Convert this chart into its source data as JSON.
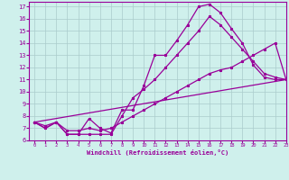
{
  "xlabel": "Windchill (Refroidissement éolien,°C)",
  "xlim": [
    -0.5,
    23
  ],
  "ylim": [
    6,
    17.4
  ],
  "xticks": [
    0,
    1,
    2,
    3,
    4,
    5,
    6,
    7,
    8,
    9,
    10,
    11,
    12,
    13,
    14,
    15,
    16,
    17,
    18,
    19,
    20,
    21,
    22,
    23
  ],
  "yticks": [
    6,
    7,
    8,
    9,
    10,
    11,
    12,
    13,
    14,
    15,
    16,
    17
  ],
  "bg_color": "#cff0ec",
  "grid_color": "#aacccc",
  "line_color": "#990099",
  "line1_x": [
    0,
    1,
    2,
    3,
    4,
    5,
    6,
    7,
    8,
    9,
    10,
    11,
    12,
    13,
    14,
    15,
    16,
    17,
    18,
    19,
    20,
    21,
    22,
    23
  ],
  "line1_y": [
    7.5,
    7.0,
    7.5,
    6.5,
    6.5,
    7.8,
    7.0,
    6.6,
    8.5,
    8.5,
    10.5,
    13.0,
    13.0,
    14.2,
    15.5,
    17.0,
    17.2,
    16.5,
    15.2,
    14.0,
    12.2,
    11.2,
    11.0,
    11.0
  ],
  "line2_x": [
    0,
    1,
    2,
    3,
    4,
    5,
    6,
    7,
    8,
    9,
    10,
    11,
    12,
    13,
    14,
    15,
    16,
    17,
    18,
    19,
    20,
    21,
    22,
    23
  ],
  "line2_y": [
    7.5,
    7.0,
    7.5,
    6.5,
    6.5,
    6.5,
    6.5,
    6.5,
    8.0,
    9.5,
    10.2,
    11.0,
    12.0,
    13.0,
    14.0,
    15.0,
    16.2,
    15.5,
    14.5,
    13.5,
    12.5,
    11.5,
    11.2,
    11.0
  ],
  "line3_x": [
    0,
    1,
    2,
    3,
    4,
    5,
    6,
    7,
    8,
    9,
    10,
    11,
    12,
    13,
    14,
    15,
    16,
    17,
    18,
    19,
    20,
    21,
    22,
    23
  ],
  "line3_y": [
    7.5,
    7.2,
    7.5,
    6.8,
    6.8,
    7.0,
    6.8,
    7.0,
    7.5,
    8.0,
    8.5,
    9.0,
    9.5,
    10.0,
    10.5,
    11.0,
    11.5,
    11.8,
    12.0,
    12.5,
    13.0,
    13.5,
    14.0,
    11.0
  ],
  "line4_x": [
    0,
    23
  ],
  "line4_y": [
    7.5,
    11.0
  ]
}
